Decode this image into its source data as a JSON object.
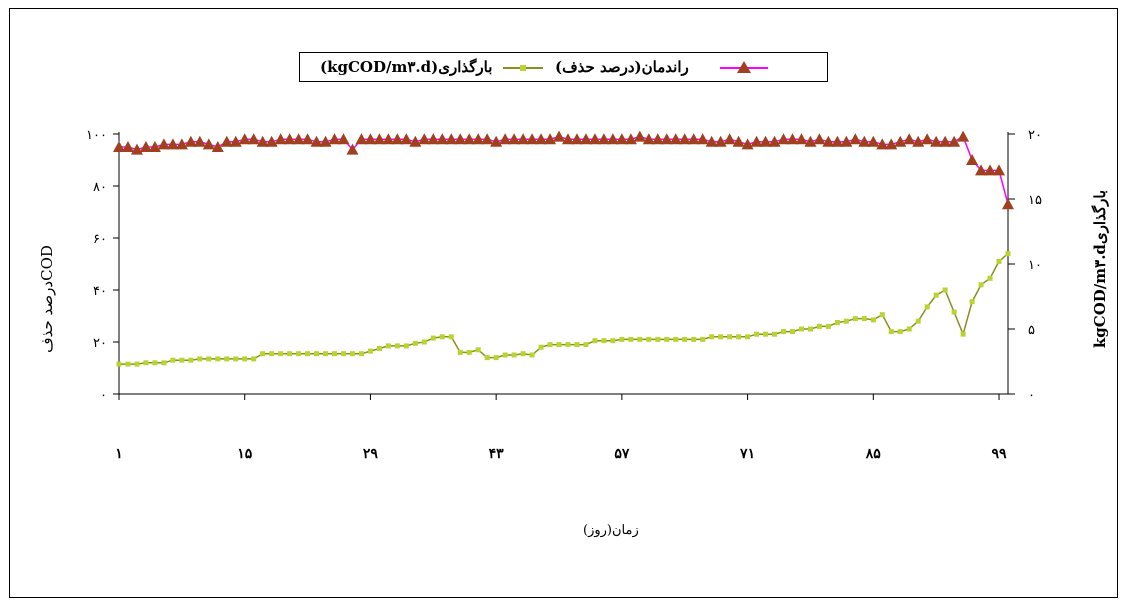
{
  "chart_data": {
    "type": "line",
    "xlabel": "زمان(روز)",
    "ylabel_left": "درصد حذفCOD",
    "ylabel_right": "kgCOD/m۳.dبارگذاری",
    "x_ticks": [
      "۱",
      "۱۵",
      "۲۹",
      "۴۳",
      "۵۷",
      "۷۱",
      "۸۵",
      "۹۹"
    ],
    "x_tick_values": [
      1,
      15,
      29,
      43,
      57,
      71,
      85,
      99
    ],
    "xlim": [
      1,
      100
    ],
    "y_left_ticks": [
      "۰",
      "۲۰",
      "۴۰",
      "۶۰",
      "۸۰",
      "۱۰۰"
    ],
    "y_left_tick_values": [
      0,
      20,
      40,
      60,
      80,
      100
    ],
    "ylim_left": [
      0,
      100
    ],
    "y_right_ticks": [
      "۰",
      "۵",
      "۱۰",
      "۱۵",
      "۲۰"
    ],
    "y_right_tick_values": [
      0,
      5,
      10,
      15,
      20
    ],
    "ylim_right": [
      0,
      20
    ],
    "grid": false,
    "legend_position": "top-center",
    "legend": {
      "removal_label": "راندمان(درصد حذف)",
      "loading_label": "بارگذاری(kgCOD/m۳.d)"
    },
    "series": [
      {
        "name": "راندمان(درصد حذف)",
        "axis": "left",
        "color": "#ff00ff",
        "marker_color": "#a0401e",
        "marker": "triangle",
        "x": [
          1,
          2,
          3,
          4,
          5,
          6,
          7,
          8,
          9,
          10,
          11,
          12,
          13,
          14,
          15,
          16,
          17,
          18,
          19,
          20,
          21,
          22,
          23,
          24,
          25,
          26,
          27,
          28,
          29,
          30,
          31,
          32,
          33,
          34,
          35,
          36,
          37,
          38,
          39,
          40,
          41,
          42,
          43,
          44,
          45,
          46,
          47,
          48,
          49,
          50,
          51,
          52,
          53,
          54,
          55,
          56,
          57,
          58,
          59,
          60,
          61,
          62,
          63,
          64,
          65,
          66,
          67,
          68,
          69,
          70,
          71,
          72,
          73,
          74,
          75,
          76,
          77,
          78,
          79,
          80,
          81,
          82,
          83,
          84,
          85,
          86,
          87,
          88,
          89,
          90,
          91,
          92,
          93,
          94,
          95,
          96,
          97,
          98,
          99,
          100
        ],
        "values": [
          95,
          95,
          94,
          95,
          95,
          96,
          96,
          96,
          97,
          97,
          96,
          95,
          97,
          97,
          98,
          98,
          97,
          97,
          98,
          98,
          98,
          98,
          97,
          97,
          98,
          98,
          94,
          98,
          98,
          98,
          98,
          98,
          98,
          97,
          98,
          98,
          98,
          98,
          98,
          98,
          98,
          98,
          97,
          98,
          98,
          98,
          98,
          98,
          98,
          99,
          98,
          98,
          98,
          98,
          98,
          98,
          98,
          98,
          99,
          98,
          98,
          98,
          98,
          98,
          98,
          98,
          97,
          97,
          98,
          97,
          96,
          97,
          97,
          97,
          98,
          98,
          98,
          97,
          98,
          97,
          97,
          97,
          98,
          97,
          97,
          96,
          96,
          97,
          98,
          97,
          98,
          97,
          97,
          97,
          99,
          90,
          86,
          86,
          86,
          73
        ]
      },
      {
        "name": "بارگذاری(kgCOD/m۳.d)",
        "axis": "right",
        "color": "#8b8f1f",
        "marker_color": "#b8d430",
        "marker": "square",
        "x": [
          1,
          2,
          3,
          4,
          5,
          6,
          7,
          8,
          9,
          10,
          11,
          12,
          13,
          14,
          15,
          16,
          17,
          18,
          19,
          20,
          21,
          22,
          23,
          24,
          25,
          26,
          27,
          28,
          29,
          30,
          31,
          32,
          33,
          34,
          35,
          36,
          37,
          38,
          39,
          40,
          41,
          42,
          43,
          44,
          45,
          46,
          47,
          48,
          49,
          50,
          51,
          52,
          53,
          54,
          55,
          56,
          57,
          58,
          59,
          60,
          61,
          62,
          63,
          64,
          65,
          66,
          67,
          68,
          69,
          70,
          71,
          72,
          73,
          74,
          75,
          76,
          77,
          78,
          79,
          80,
          81,
          82,
          83,
          84,
          85,
          86,
          87,
          88,
          89,
          90,
          91,
          92,
          93,
          94,
          95,
          96,
          97,
          98,
          99,
          100
        ],
        "values": [
          2.3,
          2.3,
          2.3,
          2.4,
          2.4,
          2.4,
          2.6,
          2.6,
          2.6,
          2.7,
          2.7,
          2.7,
          2.7,
          2.7,
          2.7,
          2.7,
          3.1,
          3.1,
          3.1,
          3.1,
          3.1,
          3.1,
          3.1,
          3.1,
          3.1,
          3.1,
          3.1,
          3.1,
          3.3,
          3.5,
          3.7,
          3.7,
          3.7,
          3.9,
          4.0,
          4.3,
          4.4,
          4.4,
          3.2,
          3.2,
          3.4,
          2.8,
          2.8,
          3.0,
          3.0,
          3.1,
          3.0,
          3.6,
          3.8,
          3.8,
          3.8,
          3.8,
          3.8,
          4.1,
          4.1,
          4.1,
          4.2,
          4.2,
          4.2,
          4.2,
          4.2,
          4.2,
          4.2,
          4.2,
          4.2,
          4.2,
          4.4,
          4.4,
          4.4,
          4.4,
          4.4,
          4.6,
          4.6,
          4.6,
          4.8,
          4.8,
          5.0,
          5.0,
          5.2,
          5.2,
          5.5,
          5.6,
          5.8,
          5.8,
          5.7,
          6.1,
          4.8,
          4.8,
          5.0,
          5.6,
          6.7,
          7.6,
          8.0,
          6.3,
          4.6,
          7.1,
          8.4,
          8.9,
          10.2,
          10.8
        ]
      }
    ]
  }
}
